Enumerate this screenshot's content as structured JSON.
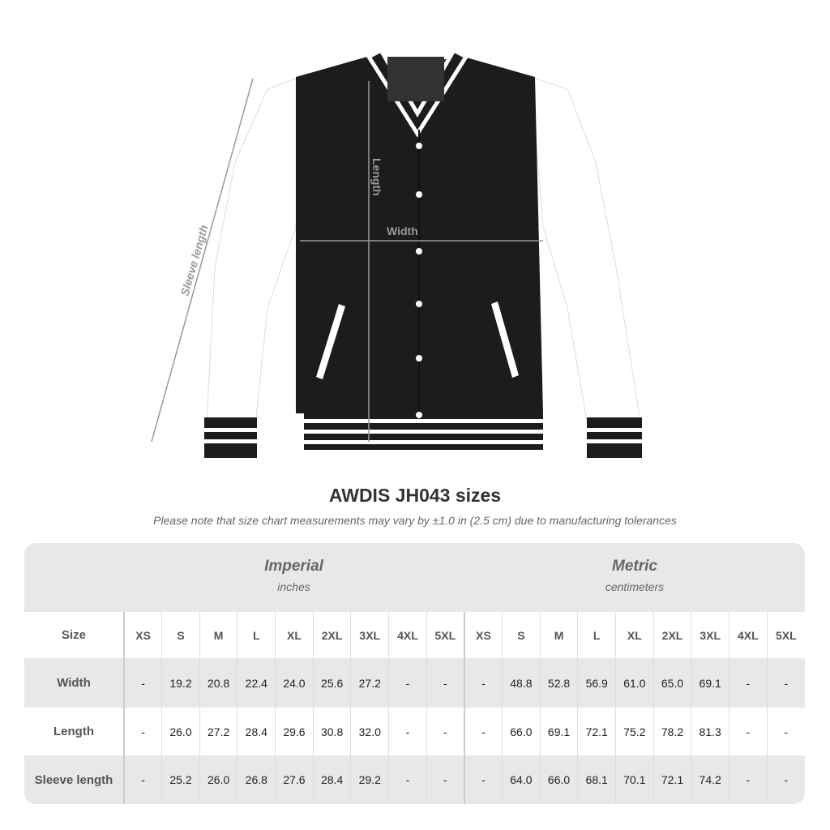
{
  "diagram": {
    "labels": {
      "length": "Length",
      "width": "Width",
      "sleeve_length": "Sleeve length"
    },
    "colors": {
      "body": "#1c1c1c",
      "sleeves": "#ffffff",
      "stripes": "#ffffff",
      "measure_lines": "#999999"
    }
  },
  "title": "AWDIS JH043 sizes",
  "note": "Please note that size chart measurements may vary by ±1.0 in (2.5 cm) due to manufacturing tolerances",
  "table": {
    "imperial": {
      "label": "Imperial",
      "unit": "inches"
    },
    "metric": {
      "label": "Metric",
      "unit": "centimeters"
    },
    "size_header": "Size",
    "sizes": [
      "XS",
      "S",
      "M",
      "L",
      "XL",
      "2XL",
      "3XL",
      "4XL",
      "5XL"
    ],
    "rows": [
      {
        "label": "Width",
        "imperial": [
          "-",
          "19.2",
          "20.8",
          "22.4",
          "24.0",
          "25.6",
          "27.2",
          "-",
          "-"
        ],
        "metric": [
          "-",
          "48.8",
          "52.8",
          "56.9",
          "61.0",
          "65.0",
          "69.1",
          "-",
          "-"
        ]
      },
      {
        "label": "Length",
        "imperial": [
          "-",
          "26.0",
          "27.2",
          "28.4",
          "29.6",
          "30.8",
          "32.0",
          "-",
          "-"
        ],
        "metric": [
          "-",
          "66.0",
          "69.1",
          "72.1",
          "75.2",
          "78.2",
          "81.3",
          "-",
          "-"
        ]
      },
      {
        "label": "Sleeve length",
        "imperial": [
          "-",
          "25.2",
          "26.0",
          "26.8",
          "27.6",
          "28.4",
          "29.2",
          "-",
          "-"
        ],
        "metric": [
          "-",
          "64.0",
          "66.0",
          "68.1",
          "70.1",
          "72.1",
          "74.2",
          "-",
          "-"
        ]
      }
    ]
  }
}
